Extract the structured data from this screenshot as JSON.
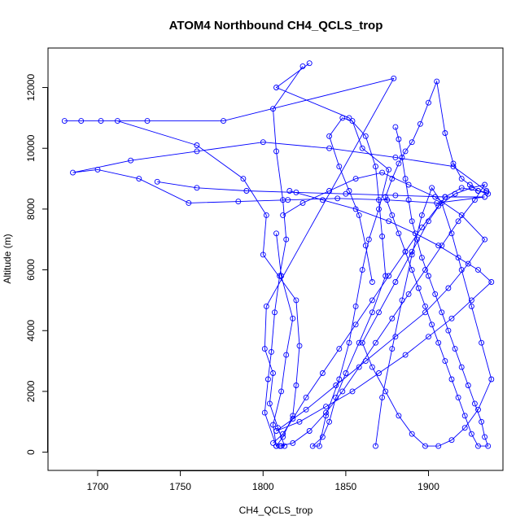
{
  "chart_data": {
    "type": "scatter",
    "title": "ATOM4 Northbound CH4_QCLS_trop",
    "xlabel": "CH4_QCLS_trop",
    "ylabel": "Altitude (m)",
    "xlim": [
      1670,
      1945
    ],
    "ylim": [
      -600,
      13300
    ],
    "xticks": [
      1700,
      1750,
      1800,
      1850,
      1900
    ],
    "yticks": [
      0,
      2000,
      4000,
      6000,
      8000,
      10000,
      12000
    ],
    "grid": false,
    "legend": "none",
    "color": "#0000ff",
    "series": [
      {
        "x": [
          1824,
          1806,
          1808,
          1812,
          1814,
          1810,
          1807,
          1805,
          1803,
          1801,
          1808,
          1811,
          1813,
          1809,
          1804,
          1806,
          1801,
          1802,
          1879,
          1776,
          1730,
          1680,
          1690,
          1702,
          1712,
          1760,
          1788,
          1802,
          1800,
          1820,
          1822,
          1820,
          1818,
          1812,
          1808,
          1806,
          1811,
          1814,
          1818,
          1811,
          1808
        ],
        "y": [
          12700,
          11300,
          9900,
          8300,
          7000,
          5800,
          4600,
          3300,
          2400,
          1300,
          200,
          200,
          200,
          800,
          1600,
          2600,
          3400,
          4800,
          12300,
          10900,
          10900,
          10900,
          10900,
          10900,
          10900,
          10100,
          9000,
          7800,
          6500,
          5000,
          3500,
          2200,
          1200,
          500,
          200,
          900,
          2000,
          3200,
          4400,
          5800,
          7200
        ]
      },
      {
        "x": [
          1828,
          1808,
          1852,
          1862,
          1868,
          1870,
          1872,
          1874,
          1866,
          1858,
          1850,
          1844,
          1840,
          1836,
          1830,
          1834,
          1838,
          1846,
          1852,
          1856,
          1860,
          1864,
          1870,
          1876,
          1860,
          1854,
          1848,
          1840,
          1846,
          1852,
          1858,
          1862,
          1866
        ],
        "y": [
          12800,
          12000,
          11000,
          10400,
          9400,
          8300,
          7100,
          5800,
          4600,
          3600,
          2600,
          1800,
          1000,
          500,
          200,
          200,
          1200,
          2400,
          3600,
          4800,
          6000,
          7000,
          8000,
          9300,
          10000,
          10900,
          11000,
          10400,
          9400,
          8600,
          7800,
          6800,
          5600
        ]
      },
      {
        "x": [
          1880,
          1882,
          1884,
          1886,
          1888,
          1890,
          1893,
          1896,
          1900,
          1904,
          1908,
          1912,
          1916,
          1920,
          1924,
          1928,
          1932,
          1934,
          1936,
          1930,
          1926,
          1922,
          1918,
          1914,
          1910,
          1906,
          1902,
          1898,
          1894,
          1890,
          1886,
          1882,
          1878,
          1874,
          1878,
          1882,
          1886,
          1890,
          1895,
          1900,
          1905,
          1910,
          1915,
          1920,
          1925,
          1930,
          1935
        ],
        "y": [
          10700,
          10300,
          9700,
          9000,
          8300,
          7600,
          7000,
          6400,
          5800,
          5200,
          4600,
          4000,
          3400,
          2800,
          2200,
          1600,
          1000,
          500,
          200,
          200,
          600,
          1200,
          1800,
          2400,
          3000,
          3600,
          4200,
          4800,
          5400,
          6000,
          6600,
          7200,
          7800,
          8400,
          9000,
          9500,
          9900,
          10200,
          10800,
          11500,
          12200,
          10500,
          9500,
          9000,
          8800,
          8600,
          8550
        ]
      },
      {
        "x": [
          1736,
          1760,
          1790,
          1820,
          1850,
          1880,
          1910,
          1934,
          1905,
          1875,
          1845,
          1815,
          1785,
          1755,
          1725,
          1700,
          1685,
          1720,
          1760,
          1800,
          1840,
          1880,
          1915,
          1935
        ],
        "y": [
          8900,
          8700,
          8600,
          8550,
          8500,
          8450,
          8400,
          8400,
          8200,
          8300,
          8350,
          8300,
          8250,
          8200,
          9000,
          9300,
          9200,
          9600,
          9900,
          10200,
          10000,
          9700,
          9400,
          8600
        ]
      },
      {
        "x": [
          1816,
          1836,
          1856,
          1876,
          1892,
          1906,
          1918,
          1930,
          1938,
          1926,
          1914,
          1900,
          1886,
          1870,
          1854,
          1838,
          1822,
          1808,
          1826,
          1844,
          1862,
          1880,
          1898,
          1912,
          1924,
          1934,
          1920,
          1904,
          1888,
          1872,
          1856,
          1840,
          1824,
          1812
        ],
        "y": [
          8600,
          8300,
          8000,
          7600,
          7200,
          6800,
          6400,
          6000,
          5600,
          5000,
          4400,
          3800,
          3200,
          2600,
          2000,
          1500,
          1000,
          700,
          1400,
          2200,
          3000,
          3800,
          4600,
          5400,
          6200,
          7000,
          7800,
          8400,
          8800,
          9200,
          9000,
          8600,
          8200,
          7800
        ]
      },
      {
        "x": [
          1868,
          1872,
          1878,
          1884,
          1890,
          1896,
          1902,
          1908,
          1914,
          1920,
          1926,
          1932,
          1938,
          1930,
          1922,
          1914,
          1906,
          1898,
          1890,
          1882,
          1874,
          1866,
          1860,
          1870,
          1880,
          1890,
          1900,
          1910,
          1920,
          1930,
          1936
        ],
        "y": [
          200,
          1800,
          3400,
          5000,
          6500,
          7800,
          8700,
          8200,
          7200,
          6000,
          4800,
          3600,
          2400,
          1400,
          800,
          400,
          200,
          200,
          600,
          1200,
          2000,
          2800,
          3600,
          4600,
          5600,
          6600,
          7600,
          8400,
          8700,
          8600,
          8500
        ]
      },
      {
        "x": [
          1806,
          1812,
          1818,
          1826,
          1836,
          1846,
          1856,
          1866,
          1876,
          1886,
          1896,
          1906,
          1916,
          1926,
          1934,
          1928,
          1918,
          1908,
          1898,
          1888,
          1878,
          1868,
          1858,
          1848,
          1838,
          1828,
          1818,
          1810
        ],
        "y": [
          300,
          600,
          1100,
          1800,
          2600,
          3400,
          4200,
          5000,
          5800,
          6600,
          7400,
          8100,
          8500,
          8700,
          8800,
          8300,
          7600,
          6800,
          6000,
          5200,
          4400,
          3600,
          2800,
          2000,
          1300,
          700,
          300,
          200
        ]
      }
    ]
  }
}
